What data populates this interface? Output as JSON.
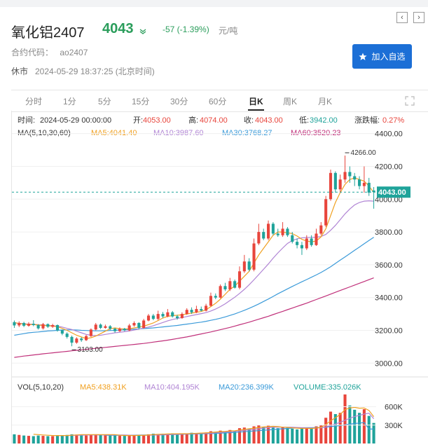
{
  "header": {
    "title": "氧化铝2407",
    "price": "4043",
    "change": "-57 (-1.39%)",
    "unit": "元/吨",
    "code_label": "合约代码：",
    "code_value": "ao2407",
    "status": "休市",
    "time": "2024-05-29 18:37:25 (北京时间)",
    "add_button": "加入自选"
  },
  "tabs": [
    "分时",
    "1分",
    "5分",
    "15分",
    "30分",
    "60分",
    "日K",
    "周K",
    "月K"
  ],
  "active_tab": "日K",
  "info": {
    "time_label": "时间:",
    "time_value": "2024-05-29 00:00:00",
    "open_label": "开:",
    "open_value": "4053.00",
    "high_label": "高:",
    "high_value": "4074.00",
    "close_label": "收:",
    "close_value": "4043.00",
    "low_label": "低:",
    "low_value": "3942.00",
    "chg_label": "涨跌幅:",
    "chg_value": "0.27%"
  },
  "ma": {
    "label": "MA(5,10,30,60)",
    "ma5": "MA5:4041.40",
    "ma10": "MA10:3987.60",
    "ma30": "MA30:3768.27",
    "ma60": "MA60:3520.23"
  },
  "vol": {
    "label": "VOL(5,10,20)",
    "ma5": "MA5:438.31K",
    "ma10": "MA10:404.195K",
    "ma20": "MA20:236.399K",
    "volume": "VOLUME:335.026K"
  },
  "colors": {
    "up": "#e8453c",
    "down": "#1fa39a",
    "ma5": "#f0a020",
    "ma10": "#b084d4",
    "ma30": "#3a9ad9",
    "ma60": "#c0307a"
  },
  "chart_data": {
    "type": "candlestick",
    "yticks": [
      "4400.00",
      "4200.00",
      "4000.00",
      "3800.00",
      "3600.00",
      "3400.00",
      "3200.00",
      "3000.00"
    ],
    "ylim": [
      2950,
      4420
    ],
    "current_price_label": "4043.00",
    "current_price": 4043,
    "annotations": [
      {
        "text": "4266.00",
        "value": 4266,
        "index": 69
      },
      {
        "text": "3103.00",
        "value": 3103,
        "index": 12
      }
    ],
    "vol_yticks": [
      "600K",
      "300K"
    ],
    "vol_ylim": [
      0,
      800
    ],
    "candles": [
      [
        3250,
        3230,
        3260,
        3215,
        "d"
      ],
      [
        3230,
        3245,
        3255,
        3220,
        "u"
      ],
      [
        3245,
        3228,
        3252,
        3220,
        "d"
      ],
      [
        3228,
        3240,
        3250,
        3222,
        "u"
      ],
      [
        3240,
        3232,
        3262,
        3225,
        "d"
      ],
      [
        3232,
        3212,
        3238,
        3205,
        "d"
      ],
      [
        3212,
        3238,
        3245,
        3205,
        "u"
      ],
      [
        3238,
        3222,
        3242,
        3215,
        "d"
      ],
      [
        3222,
        3232,
        3240,
        3215,
        "u"
      ],
      [
        3232,
        3200,
        3236,
        3192,
        "d"
      ],
      [
        3200,
        3180,
        3205,
        3170,
        "d"
      ],
      [
        3180,
        3160,
        3188,
        3150,
        "d"
      ],
      [
        3160,
        3125,
        3168,
        3103,
        "d"
      ],
      [
        3125,
        3150,
        3158,
        3118,
        "u"
      ],
      [
        3150,
        3140,
        3158,
        3130,
        "d"
      ],
      [
        3140,
        3165,
        3172,
        3135,
        "u"
      ],
      [
        3165,
        3205,
        3212,
        3160,
        "u"
      ],
      [
        3205,
        3235,
        3245,
        3200,
        "u"
      ],
      [
        3235,
        3215,
        3242,
        3208,
        "d"
      ],
      [
        3215,
        3225,
        3235,
        3210,
        "u"
      ],
      [
        3225,
        3210,
        3232,
        3200,
        "d"
      ],
      [
        3210,
        3195,
        3215,
        3185,
        "d"
      ],
      [
        3195,
        3210,
        3218,
        3190,
        "u"
      ],
      [
        3210,
        3200,
        3215,
        3195,
        "d"
      ],
      [
        3200,
        3230,
        3240,
        3195,
        "u"
      ],
      [
        3230,
        3245,
        3255,
        3222,
        "u"
      ],
      [
        3245,
        3215,
        3250,
        3205,
        "d"
      ],
      [
        3215,
        3260,
        3270,
        3210,
        "u"
      ],
      [
        3260,
        3290,
        3300,
        3255,
        "u"
      ],
      [
        3290,
        3270,
        3300,
        3262,
        "d"
      ],
      [
        3270,
        3300,
        3320,
        3262,
        "u"
      ],
      [
        3300,
        3285,
        3312,
        3275,
        "d"
      ],
      [
        3285,
        3310,
        3330,
        3280,
        "u"
      ],
      [
        3310,
        3285,
        3318,
        3278,
        "d"
      ],
      [
        3285,
        3275,
        3295,
        3265,
        "d"
      ],
      [
        3275,
        3300,
        3310,
        3270,
        "u"
      ],
      [
        3300,
        3325,
        3335,
        3295,
        "u"
      ],
      [
        3325,
        3310,
        3340,
        3300,
        "d"
      ],
      [
        3310,
        3330,
        3350,
        3305,
        "u"
      ],
      [
        3330,
        3320,
        3345,
        3315,
        "d"
      ],
      [
        3320,
        3350,
        3362,
        3315,
        "u"
      ],
      [
        3350,
        3410,
        3430,
        3345,
        "u"
      ],
      [
        3410,
        3400,
        3425,
        3390,
        "d"
      ],
      [
        3400,
        3470,
        3480,
        3395,
        "u"
      ],
      [
        3470,
        3450,
        3490,
        3440,
        "d"
      ],
      [
        3450,
        3500,
        3520,
        3440,
        "u"
      ],
      [
        3500,
        3460,
        3510,
        3455,
        "d"
      ],
      [
        3460,
        3560,
        3590,
        3450,
        "u"
      ],
      [
        3560,
        3620,
        3660,
        3550,
        "u"
      ],
      [
        3620,
        3570,
        3640,
        3560,
        "d"
      ],
      [
        3570,
        3730,
        3760,
        3560,
        "u"
      ],
      [
        3730,
        3800,
        3850,
        3720,
        "u"
      ],
      [
        3800,
        3760,
        3820,
        3750,
        "d"
      ],
      [
        3760,
        3850,
        3870,
        3750,
        "u"
      ],
      [
        3850,
        3790,
        3860,
        3780,
        "d"
      ],
      [
        3790,
        3780,
        3820,
        3770,
        "d"
      ],
      [
        3780,
        3820,
        3860,
        3770,
        "u"
      ],
      [
        3820,
        3780,
        3830,
        3770,
        "d"
      ],
      [
        3780,
        3740,
        3800,
        3730,
        "d"
      ],
      [
        3740,
        3720,
        3760,
        3700,
        "d"
      ],
      [
        3720,
        3700,
        3740,
        3660,
        "d"
      ],
      [
        3700,
        3760,
        3780,
        3690,
        "u"
      ],
      [
        3760,
        3720,
        3780,
        3710,
        "d"
      ],
      [
        3720,
        3790,
        3820,
        3715,
        "u"
      ],
      [
        3790,
        3840,
        3860,
        3780,
        "u"
      ],
      [
        3840,
        4000,
        4020,
        3830,
        "u"
      ],
      [
        4000,
        4160,
        4180,
        3990,
        "u"
      ],
      [
        4160,
        4060,
        4170,
        4040,
        "d"
      ],
      [
        4060,
        4120,
        4150,
        4040,
        "u"
      ],
      [
        4120,
        4166,
        4266,
        4100,
        "u"
      ],
      [
        4166,
        4140,
        4200,
        4100,
        "d"
      ],
      [
        4140,
        4120,
        4160,
        4080,
        "d"
      ],
      [
        4120,
        4080,
        4140,
        4060,
        "d"
      ],
      [
        4080,
        4100,
        4200,
        4040,
        "u"
      ],
      [
        4100,
        4040,
        4130,
        4020,
        "d"
      ],
      [
        4053,
        4043,
        4074,
        3942,
        "d"
      ]
    ],
    "ma5": [
      3248,
      3242,
      3238,
      3235,
      3236,
      3232,
      3230,
      3228,
      3226,
      3222,
      3212,
      3200,
      3185,
      3170,
      3160,
      3150,
      3155,
      3165,
      3180,
      3195,
      3210,
      3215,
      3210,
      3208,
      3210,
      3215,
      3220,
      3225,
      3235,
      3245,
      3260,
      3275,
      3285,
      3290,
      3292,
      3295,
      3300,
      3305,
      3310,
      3315,
      3325,
      3345,
      3365,
      3390,
      3420,
      3450,
      3470,
      3500,
      3530,
      3560,
      3610,
      3660,
      3700,
      3740,
      3780,
      3800,
      3800,
      3795,
      3790,
      3775,
      3755,
      3745,
      3740,
      3745,
      3770,
      3820,
      3900,
      3980,
      4040,
      4090,
      4120,
      4130,
      4120,
      4110,
      4080,
      4041
    ],
    "ma10": [
      3245,
      3243,
      3240,
      3238,
      3237,
      3234,
      3232,
      3230,
      3228,
      3225,
      3220,
      3212,
      3205,
      3195,
      3185,
      3175,
      3170,
      3168,
      3170,
      3175,
      3180,
      3185,
      3188,
      3192,
      3196,
      3202,
      3208,
      3214,
      3220,
      3228,
      3238,
      3248,
      3258,
      3266,
      3272,
      3278,
      3284,
      3290,
      3296,
      3302,
      3308,
      3318,
      3330,
      3345,
      3362,
      3382,
      3402,
      3425,
      3450,
      3478,
      3508,
      3540,
      3572,
      3605,
      3640,
      3672,
      3702,
      3730,
      3748,
      3758,
      3764,
      3766,
      3767,
      3768,
      3772,
      3785,
      3810,
      3840,
      3875,
      3910,
      3940,
      3965,
      3980,
      3988,
      3990,
      3988
    ],
    "ma30": [
      3170,
      3175,
      3180,
      3185,
      3188,
      3190,
      3193,
      3196,
      3198,
      3200,
      3202,
      3203,
      3203,
      3202,
      3200,
      3199,
      3198,
      3197,
      3197,
      3198,
      3199,
      3200,
      3202,
      3203,
      3205,
      3207,
      3209,
      3211,
      3213,
      3215,
      3218,
      3221,
      3224,
      3227,
      3230,
      3234,
      3238,
      3242,
      3246,
      3250,
      3255,
      3261,
      3267,
      3274,
      3282,
      3291,
      3300,
      3311,
      3322,
      3334,
      3347,
      3361,
      3376,
      3391,
      3407,
      3423,
      3438,
      3453,
      3468,
      3482,
      3496,
      3510,
      3524,
      3538,
      3553,
      3570,
      3588,
      3608,
      3628,
      3648,
      3668,
      3688,
      3708,
      3728,
      3748,
      3768
    ],
    "ma60": [
      3035,
      3039,
      3043,
      3046,
      3050,
      3053,
      3057,
      3060,
      3063,
      3066,
      3069,
      3072,
      3075,
      3078,
      3081,
      3084,
      3087,
      3090,
      3093,
      3096,
      3099,
      3102,
      3105,
      3108,
      3111,
      3114,
      3117,
      3120,
      3124,
      3128,
      3132,
      3136,
      3140,
      3145,
      3150,
      3155,
      3160,
      3166,
      3172,
      3178,
      3184,
      3190,
      3197,
      3204,
      3211,
      3218,
      3226,
      3234,
      3242,
      3250,
      3259,
      3268,
      3277,
      3286,
      3296,
      3306,
      3316,
      3326,
      3336,
      3346,
      3356,
      3366,
      3377,
      3388,
      3399,
      3410,
      3421,
      3432,
      3443,
      3454,
      3465,
      3476,
      3487,
      3498,
      3509,
      3520
    ],
    "volume": [
      150,
      140,
      130,
      125,
      120,
      130,
      125,
      120,
      120,
      125,
      130,
      140,
      150,
      145,
      135,
      130,
      140,
      150,
      140,
      135,
      130,
      130,
      125,
      125,
      130,
      135,
      140,
      135,
      150,
      160,
      150,
      160,
      155,
      165,
      160,
      150,
      165,
      175,
      170,
      175,
      180,
      200,
      190,
      210,
      200,
      220,
      210,
      250,
      260,
      240,
      280,
      300,
      270,
      290,
      260,
      250,
      270,
      255,
      240,
      230,
      240,
      260,
      250,
      280,
      300,
      420,
      520,
      480,
      500,
      800,
      620,
      550,
      500,
      560,
      450,
      335
    ],
    "vol_ma5": [
      0,
      0,
      0,
      0,
      150,
      145,
      140,
      135,
      130,
      130,
      130,
      130,
      135,
      140,
      145,
      145,
      145,
      145,
      145,
      145,
      145,
      145,
      135,
      130,
      130,
      130,
      132,
      133,
      138,
      145,
      150,
      152,
      156,
      158,
      159,
      160,
      160,
      162,
      166,
      170,
      173,
      180,
      187,
      193,
      198,
      204,
      208,
      220,
      230,
      240,
      250,
      262,
      270,
      276,
      280,
      276,
      266,
      263,
      255,
      250,
      246,
      248,
      244,
      252,
      264,
      310,
      370,
      420,
      474,
      552,
      580,
      590,
      576,
      580,
      540,
      438
    ],
    "vol_ma10": [
      0,
      0,
      0,
      0,
      0,
      0,
      0,
      0,
      0,
      130,
      130,
      130,
      132,
      134,
      136,
      138,
      140,
      140,
      140,
      140,
      140,
      140,
      140,
      138,
      136,
      134,
      134,
      134,
      136,
      138,
      140,
      142,
      144,
      146,
      149,
      152,
      155,
      158,
      160,
      162,
      164,
      168,
      174,
      180,
      186,
      192,
      198,
      206,
      214,
      222,
      230,
      240,
      250,
      258,
      264,
      266,
      266,
      266,
      266,
      262,
      258,
      256,
      254,
      254,
      256,
      270,
      294,
      318,
      346,
      380,
      410,
      440,
      460,
      480,
      494,
      404
    ],
    "vol_ma20": [
      0,
      0,
      0,
      0,
      0,
      0,
      0,
      0,
      0,
      0,
      0,
      0,
      0,
      0,
      0,
      0,
      0,
      0,
      0,
      134,
      134,
      134,
      134,
      134,
      135,
      136,
      137,
      138,
      139,
      140,
      141,
      142,
      144,
      146,
      148,
      150,
      152,
      154,
      156,
      158,
      160,
      162,
      165,
      168,
      172,
      176,
      180,
      186,
      192,
      198,
      204,
      210,
      216,
      222,
      228,
      234,
      240,
      246,
      250,
      254,
      256,
      258,
      259,
      260,
      262,
      268,
      276,
      284,
      292,
      304,
      316,
      326,
      334,
      342,
      236,
      236
    ]
  }
}
